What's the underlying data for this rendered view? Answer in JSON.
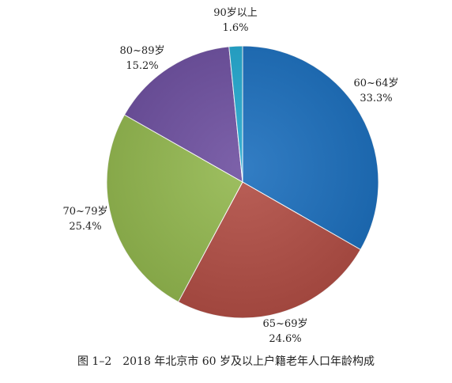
{
  "caption": "图 1–2　2018 年北京市 60 岁及以上户籍老年人口年龄构成",
  "chart_data": {
    "type": "pie",
    "title": "",
    "start_angle_deg": 0,
    "direction": "clockwise",
    "slices": [
      {
        "label": "60~64岁",
        "value": 33.3,
        "value_label": "33.3%",
        "color": "#1c6fbd"
      },
      {
        "label": "65~69岁",
        "value": 24.6,
        "value_label": "24.6%",
        "color": "#b24e45"
      },
      {
        "label": "70~79岁",
        "value": 25.4,
        "value_label": "25.4%",
        "color": "#93b84f"
      },
      {
        "label": "80~89岁",
        "value": 15.2,
        "value_label": "15.2%",
        "color": "#6e50a0"
      },
      {
        "label": "90岁以上",
        "value": 1.6,
        "value_label": "1.6%",
        "color": "#23a8cf"
      }
    ]
  }
}
